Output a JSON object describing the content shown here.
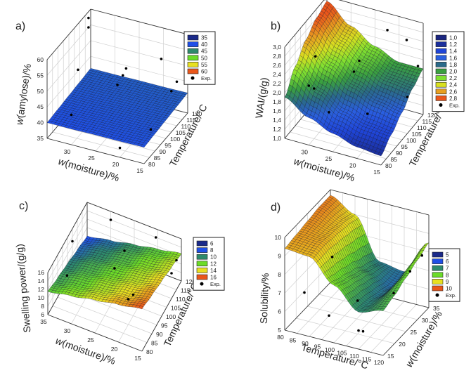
{
  "chart_data": [
    {
      "panel_label": "a)",
      "type": "surface3d",
      "x_axis": {
        "label": "w(moisture)/%",
        "range": [
          35,
          15
        ],
        "ticks": [
          35,
          30,
          25,
          20,
          15
        ],
        "tick_labels": [
          "",
          "30",
          "25",
          "20",
          "15"
        ]
      },
      "y_axis": {
        "label": "Temperature/°C",
        "range": [
          80,
          120
        ],
        "ticks": [
          80,
          85,
          90,
          95,
          100,
          105,
          110,
          115,
          120
        ],
        "tick_labels": [
          "80",
          "85",
          "90",
          "95",
          "100",
          "105",
          "110",
          "115",
          "120"
        ]
      },
      "z_axis": {
        "label": "w(amylose)/%",
        "range": [
          35,
          60
        ],
        "ticks": [
          35,
          40,
          45,
          50,
          55,
          60
        ],
        "tick_labels": [
          "35",
          "40",
          "45",
          "50",
          "55",
          "60"
        ]
      },
      "legend": {
        "levels": [
          35,
          40,
          45,
          50,
          55,
          60
        ],
        "labels": [
          "35",
          "40",
          "45",
          "50",
          "55",
          "60"
        ],
        "colors": [
          "#1b2a8a",
          "#1f4fe6",
          "#2e8a6c",
          "#6cdc28",
          "#e8e020",
          "#ea561a"
        ],
        "exp_label": "Exp."
      },
      "surface": {
        "x": [
          35,
          30,
          25,
          20,
          15
        ],
        "y": [
          80,
          90,
          100,
          110,
          120
        ],
        "z": [
          [
            40,
            40.3,
            40.6,
            40.9,
            41.2
          ],
          [
            40,
            40.3,
            40.6,
            40.9,
            41.2
          ],
          [
            40.1,
            40.4,
            40.7,
            41,
            41.3
          ],
          [
            40.1,
            40.4,
            40.7,
            41,
            41.3
          ],
          [
            40.2,
            40.5,
            40.8,
            41.1,
            41.4
          ]
        ]
      },
      "exp_points": [
        [
          35,
          118,
          58
        ],
        [
          35,
          118,
          55
        ],
        [
          32,
          95,
          52
        ],
        [
          30,
          80,
          44.5
        ],
        [
          25,
          108,
          50
        ],
        [
          25,
          105,
          49
        ],
        [
          25,
          100,
          48
        ],
        [
          20,
          118,
          51
        ],
        [
          15,
          110,
          49
        ],
        [
          15,
          105,
          48
        ],
        [
          20,
          80,
          38
        ],
        [
          17,
          95,
          39
        ]
      ]
    },
    {
      "panel_label": "b)",
      "type": "surface3d",
      "x_axis": {
        "label": "w(moisture)/%",
        "range": [
          35,
          15
        ],
        "ticks": [
          35,
          30,
          25,
          20,
          15
        ],
        "tick_labels": [
          "",
          "30",
          "25",
          "20",
          "15"
        ]
      },
      "y_axis": {
        "label": "Temperature/°C",
        "range": [
          80,
          120
        ],
        "ticks": [
          80,
          85,
          90,
          95,
          100,
          105,
          110,
          115,
          120
        ],
        "tick_labels": [
          "80",
          "85",
          "90",
          "95",
          "100",
          "105",
          "110",
          "115",
          "120"
        ]
      },
      "z_axis": {
        "label": "WAI/(g/g)",
        "range": [
          1.0,
          3.0
        ],
        "ticks": [
          1.0,
          1.2,
          1.4,
          1.6,
          1.8,
          2.0,
          2.2,
          2.4,
          2.6,
          2.8,
          3.0
        ],
        "tick_labels": [
          "1,0",
          "1,2",
          "1,4",
          "1,6",
          "1,8",
          "2,0",
          "2,2",
          "2,4",
          "2,6",
          "2,8",
          "3,0"
        ]
      },
      "legend": {
        "levels": [
          1.0,
          1.2,
          1.4,
          1.6,
          1.8,
          2.0,
          2.2,
          2.4,
          2.6,
          2.8
        ],
        "labels": [
          "1,0",
          "1,2",
          "1,4",
          "1,6",
          "1,8",
          "2,0",
          "2,2",
          "2,4",
          "2,6",
          "2,8"
        ],
        "colors": [
          "#1a2580",
          "#1b2f9c",
          "#1f45d8",
          "#2a5fe0",
          "#2a6a8a",
          "#3aa040",
          "#7fe030",
          "#d8e020",
          "#e8a020",
          "#ea561a"
        ],
        "exp_label": "Exp."
      },
      "surface": {
        "x": [
          35,
          30,
          25,
          20,
          15
        ],
        "y": [
          80,
          90,
          100,
          110,
          120
        ],
        "z": [
          [
            1.9,
            2.3,
            2.6,
            2.8,
            2.9
          ],
          [
            1.6,
            1.9,
            2.2,
            2.4,
            2.5
          ],
          [
            1.4,
            1.6,
            1.9,
            2.1,
            2.2
          ],
          [
            1.25,
            1.45,
            1.7,
            1.9,
            2.0
          ],
          [
            1.2,
            1.4,
            1.6,
            1.85,
            2.0
          ]
        ]
      },
      "exp_points": [
        [
          35,
          118,
          3.0
        ],
        [
          33,
          100,
          2.3
        ],
        [
          30,
          80,
          2.3
        ],
        [
          30,
          85,
          2.1
        ],
        [
          25,
          105,
          2.3
        ],
        [
          25,
          100,
          2.2
        ],
        [
          22,
          118,
          2.7
        ],
        [
          18,
          118,
          2.6
        ],
        [
          15,
          115,
          2.2
        ],
        [
          20,
          90,
          1.7
        ],
        [
          15,
          105,
          1.8
        ],
        [
          28,
          90,
          1.5
        ]
      ]
    },
    {
      "panel_label": "c)",
      "type": "surface3d",
      "x_axis": {
        "label": "w(moisture)/%",
        "range": [
          35,
          15
        ],
        "ticks": [
          35,
          30,
          25,
          20,
          15
        ],
        "tick_labels": [
          "35",
          "30",
          "25",
          "20",
          "15"
        ]
      },
      "y_axis": {
        "label": "Temperature/°C",
        "range": [
          80,
          120
        ],
        "ticks": [
          80,
          85,
          90,
          95,
          100,
          105,
          110,
          115,
          120
        ],
        "tick_labels": [
          "80",
          "85",
          "90",
          "95",
          "100",
          "105",
          "110",
          "115",
          "120"
        ]
      },
      "z_axis": {
        "label": "Swelling power/(g/g)",
        "range": [
          6,
          16
        ],
        "ticks": [
          6,
          8,
          10,
          12,
          14,
          16
        ],
        "tick_labels": [
          "6",
          "8",
          "10",
          "12",
          "14",
          "16"
        ]
      },
      "legend": {
        "levels": [
          6,
          8,
          10,
          12,
          14,
          16
        ],
        "labels": [
          "6",
          "8",
          "10",
          "12",
          "14",
          "16"
        ],
        "colors": [
          "#1b2a8a",
          "#1f4fe6",
          "#2e8a6c",
          "#6cdc28",
          "#e8e020",
          "#ea561a"
        ],
        "exp_label": "Exp."
      },
      "surface": {
        "x": [
          35,
          30,
          25,
          20,
          15
        ],
        "y": [
          80,
          90,
          100,
          110,
          120
        ],
        "z": [
          [
            11.5,
            10.6,
            9.8,
            8.9,
            8.0
          ],
          [
            12.6,
            11.7,
            10.9,
            10.0,
            9.1
          ],
          [
            13.8,
            12.9,
            12.0,
            11.1,
            10.3
          ],
          [
            14.9,
            14.0,
            13.1,
            12.3,
            11.4
          ],
          [
            16.0,
            15.1,
            14.3,
            13.4,
            12.5
          ]
        ]
      },
      "exp_points": [
        [
          35,
          105,
          13
        ],
        [
          33,
          90,
          12
        ],
        [
          30,
          120,
          14
        ],
        [
          25,
          100,
          13
        ],
        [
          25,
          110,
          13
        ],
        [
          20,
          90,
          12
        ],
        [
          20,
          118,
          15
        ],
        [
          15,
          115,
          13
        ],
        [
          15,
          110,
          12
        ],
        [
          20,
          95,
          11
        ]
      ]
    },
    {
      "panel_label": "d)",
      "type": "surface3d",
      "x_axis": {
        "label": "Temperature/°C",
        "range": [
          80,
          120
        ],
        "ticks": [
          80,
          85,
          90,
          95,
          100,
          105,
          110,
          115,
          120
        ],
        "tick_labels": [
          "80",
          "85",
          "90",
          "95",
          "100",
          "105",
          "110",
          "115",
          "120"
        ]
      },
      "y_axis": {
        "label": "w(moisture)/%",
        "range": [
          15,
          35
        ],
        "ticks": [
          15,
          20,
          25,
          30,
          35
        ],
        "tick_labels": [
          "15",
          "20",
          "25",
          "30",
          "35"
        ]
      },
      "z_axis": {
        "label": "Solubility/%",
        "range": [
          5,
          10
        ],
        "ticks": [
          5,
          6,
          7,
          8,
          9,
          10
        ],
        "tick_labels": [
          "5",
          "6",
          "7",
          "8",
          "9",
          "10"
        ]
      },
      "legend": {
        "levels": [
          5,
          6,
          7,
          8,
          9,
          10
        ],
        "labels": [
          "5",
          "6",
          "7",
          "8",
          "9",
          "10"
        ],
        "colors": [
          "#1b2a8a",
          "#1f4fe6",
          "#2e8a6c",
          "#6cdc28",
          "#e8e020",
          "#ea561a"
        ],
        "exp_label": "Exp."
      },
      "surface": {
        "x": [
          80,
          90,
          100,
          110,
          120
        ],
        "y": [
          15,
          20,
          25,
          30,
          35
        ],
        "z": [
          [
            9.4,
            9.5,
            9.6,
            9.7,
            9.7
          ],
          [
            9.3,
            9.4,
            9.3,
            9.2,
            9.0
          ],
          [
            8.1,
            7.8,
            7.5,
            7.1,
            6.8
          ],
          [
            7.0,
            6.9,
            6.7,
            6.5,
            6.6
          ],
          [
            7.4,
            7.6,
            7.9,
            8.2,
            8.5
          ]
        ]
      },
      "exp_points": [
        [
          88,
          15,
          7.3
        ],
        [
          90,
          25,
          8.0
        ],
        [
          98,
          15,
          6.4
        ],
        [
          105,
          20,
          6.8
        ],
        [
          110,
          15,
          6.0
        ],
        [
          110,
          17,
          5.7
        ],
        [
          115,
          25,
          6.9
        ],
        [
          117,
          30,
          7.5
        ],
        [
          120,
          32,
          8.2
        ]
      ]
    }
  ]
}
